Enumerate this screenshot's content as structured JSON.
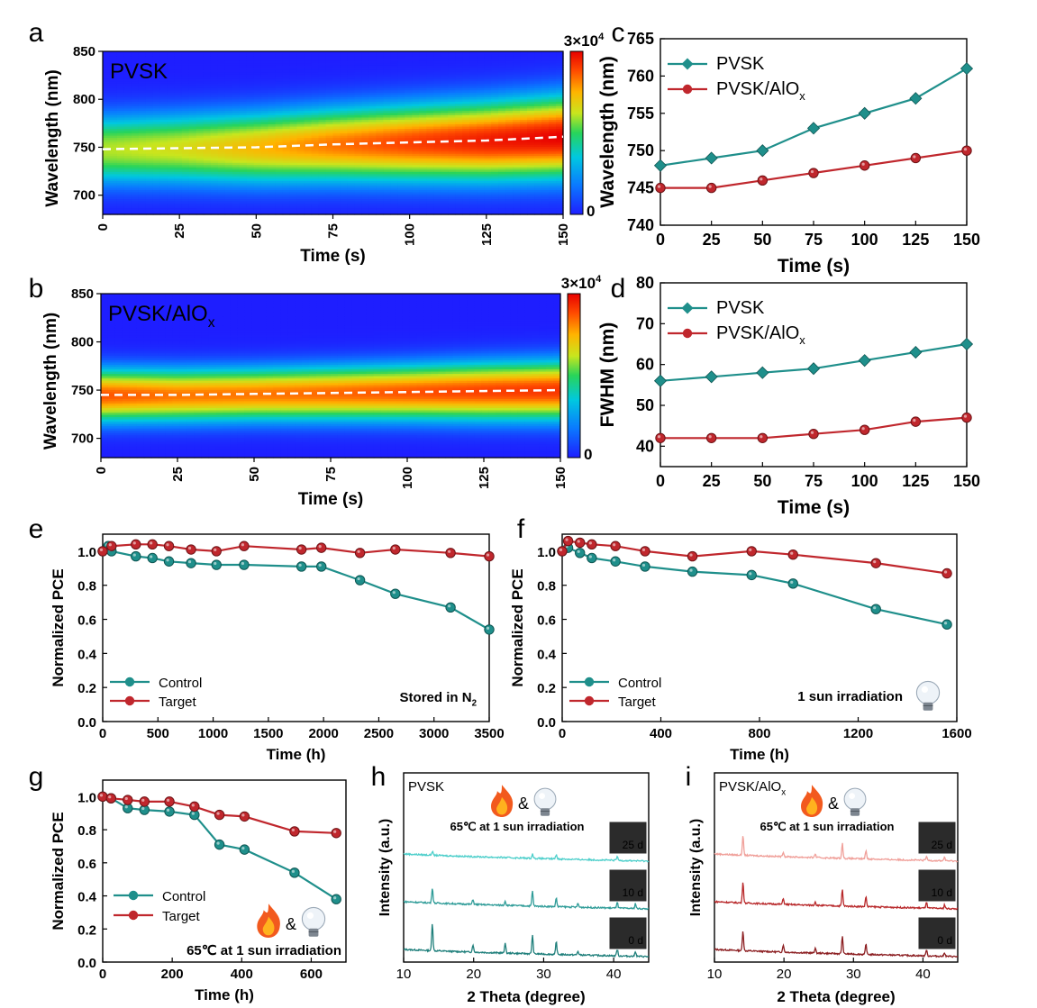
{
  "colors": {
    "pvsk": "#1f8f8b",
    "aiox": "#c0272d",
    "control": "#1f8f8b",
    "target": "#c0272d",
    "dash": "#ffffff",
    "colormap": [
      "#1e1eff",
      "#0a7aff",
      "#00c8e0",
      "#28d45a",
      "#c8e61e",
      "#ffb400",
      "#ff4c00",
      "#e80000"
    ]
  },
  "chart_data": [
    {
      "id": "a",
      "panel_label": "a",
      "type": "heatmap",
      "inset_label": "PVSK",
      "xlabel": "Time (s)",
      "ylabel": "Wavelength (nm)",
      "xlim": [
        0,
        150
      ],
      "ylim": [
        680,
        850
      ],
      "xticks": [
        "0",
        "25",
        "50",
        "75",
        "100",
        "125",
        "150"
      ],
      "yticks": [
        "700",
        "750",
        "800",
        "850"
      ],
      "colorbar": {
        "max_label": "3×10",
        "max_exp": "4",
        "min_label": "0"
      },
      "peak_trace": {
        "x": [
          0,
          25,
          50,
          75,
          100,
          125,
          150
        ],
        "y": [
          748,
          749,
          750,
          753,
          755,
          757,
          761
        ]
      },
      "fwhm_trace": [
        56,
        57,
        58,
        59,
        61,
        63,
        65
      ],
      "intensity_trend": [
        0.55,
        0.6,
        0.7,
        0.8,
        0.88,
        0.95,
        1.0
      ]
    },
    {
      "id": "b",
      "panel_label": "b",
      "type": "heatmap",
      "inset_label": "PVSK/AlO",
      "inset_sub": "x",
      "xlabel": "Time (s)",
      "ylabel": "Wavelength (nm)",
      "xlim": [
        0,
        150
      ],
      "ylim": [
        680,
        850
      ],
      "xticks": [
        "0",
        "25",
        "50",
        "75",
        "100",
        "125",
        "150"
      ],
      "yticks": [
        "700",
        "750",
        "800",
        "850"
      ],
      "colorbar": {
        "max_label": "3×10",
        "max_exp": "4",
        "min_label": "0"
      },
      "peak_trace": {
        "x": [
          0,
          25,
          50,
          75,
          100,
          125,
          150
        ],
        "y": [
          745,
          745,
          746,
          747,
          748,
          749,
          750
        ]
      },
      "fwhm_trace": [
        42,
        42,
        42,
        43,
        44,
        46,
        47
      ],
      "intensity_trend": [
        0.85,
        0.8,
        0.8,
        0.82,
        0.85,
        0.88,
        0.9
      ]
    },
    {
      "id": "c",
      "panel_label": "c",
      "type": "line",
      "xlabel": "Time (s)",
      "ylabel": "Wavelength (nm)",
      "xlim": [
        0,
        150
      ],
      "ylim": [
        740,
        765
      ],
      "xticks": [
        0,
        25,
        50,
        75,
        100,
        125,
        150
      ],
      "yticks": [
        740,
        745,
        750,
        755,
        760,
        765
      ],
      "series": [
        {
          "name": "PVSK",
          "marker": "diamond",
          "x": [
            0,
            25,
            50,
            75,
            100,
            125,
            150
          ],
          "values": [
            748,
            749,
            750,
            753,
            755,
            757,
            761
          ]
        },
        {
          "name": "PVSK/AlO",
          "sub": "x",
          "marker": "circle",
          "x": [
            0,
            25,
            50,
            75,
            100,
            125,
            150
          ],
          "values": [
            745,
            745,
            746,
            747,
            748,
            749,
            750
          ]
        }
      ]
    },
    {
      "id": "d",
      "panel_label": "d",
      "type": "line",
      "xlabel": "Time (s)",
      "ylabel": "FWHM (nm)",
      "xlim": [
        0,
        150
      ],
      "ylim": [
        35,
        80
      ],
      "xticks": [
        0,
        25,
        50,
        75,
        100,
        125,
        150
      ],
      "yticks": [
        40,
        50,
        60,
        70,
        80
      ],
      "series": [
        {
          "name": "PVSK",
          "marker": "diamond",
          "x": [
            0,
            25,
            50,
            75,
            100,
            125,
            150
          ],
          "values": [
            56,
            57,
            58,
            59,
            61,
            63,
            65
          ]
        },
        {
          "name": "PVSK/AlO",
          "sub": "x",
          "marker": "circle",
          "x": [
            0,
            25,
            50,
            75,
            100,
            125,
            150
          ],
          "values": [
            42,
            42,
            42,
            43,
            44,
            46,
            47
          ]
        }
      ]
    },
    {
      "id": "e",
      "panel_label": "e",
      "type": "line",
      "xlabel": "Time (h)",
      "ylabel": "Normalized PCE",
      "xlim": [
        0,
        3500
      ],
      "ylim": [
        0,
        1.1
      ],
      "xticks": [
        0,
        500,
        1000,
        1500,
        2000,
        2500,
        3000,
        3500
      ],
      "yticks": [
        "0.0",
        "0.2",
        "0.4",
        "0.6",
        "0.8",
        "1.0"
      ],
      "annotation": "Stored in N",
      "annotation_sub": "2",
      "series": [
        {
          "name": "Control",
          "x": [
            0,
            50,
            80,
            300,
            450,
            600,
            800,
            1030,
            1280,
            1800,
            1980,
            2330,
            2650,
            3150,
            3500
          ],
          "values": [
            1.0,
            1.03,
            1.0,
            0.97,
            0.96,
            0.94,
            0.93,
            0.92,
            0.92,
            0.91,
            0.91,
            0.83,
            0.75,
            0.67,
            0.54
          ]
        },
        {
          "name": "Target",
          "x": [
            0,
            80,
            300,
            450,
            600,
            800,
            1030,
            1280,
            1800,
            1980,
            2330,
            2650,
            3150,
            3500
          ],
          "values": [
            1.0,
            1.03,
            1.04,
            1.04,
            1.03,
            1.01,
            1.0,
            1.03,
            1.01,
            1.02,
            0.99,
            1.01,
            0.99,
            0.97
          ]
        }
      ]
    },
    {
      "id": "f",
      "panel_label": "f",
      "type": "line",
      "xlabel": "Time (h)",
      "ylabel": "Normalized PCE",
      "xlim": [
        0,
        1600
      ],
      "ylim": [
        0,
        1.1
      ],
      "xticks": [
        0,
        400,
        800,
        1200,
        1600
      ],
      "yticks": [
        "0.0",
        "0.2",
        "0.4",
        "0.6",
        "0.8",
        "1.0"
      ],
      "annotation": "1 sun irradiation",
      "annotation_icon": "bulb",
      "series": [
        {
          "name": "Control",
          "x": [
            0,
            24,
            72,
            120,
            216,
            336,
            528,
            768,
            936,
            1272,
            1560
          ],
          "values": [
            1.0,
            1.02,
            0.99,
            0.96,
            0.94,
            0.91,
            0.88,
            0.86,
            0.81,
            0.66,
            0.57
          ]
        },
        {
          "name": "Target",
          "x": [
            0,
            24,
            72,
            120,
            216,
            336,
            528,
            768,
            936,
            1272,
            1560
          ],
          "values": [
            1.0,
            1.06,
            1.05,
            1.04,
            1.03,
            1.0,
            0.97,
            1.0,
            0.98,
            0.93,
            0.87
          ]
        }
      ]
    },
    {
      "id": "g",
      "panel_label": "g",
      "type": "line",
      "xlabel": "Time (h)",
      "ylabel": "Normalized PCE",
      "xlim": [
        0,
        700
      ],
      "ylim": [
        0,
        1.1
      ],
      "xticks": [
        0,
        200,
        400,
        600
      ],
      "yticks": [
        "0.0",
        "0.2",
        "0.4",
        "0.6",
        "0.8",
        "1.0"
      ],
      "annotation": "65℃ at  1 sun irradiation",
      "annotation_icon": "fire-bulb",
      "series": [
        {
          "name": "Control",
          "x": [
            0,
            24,
            72,
            120,
            192,
            264,
            336,
            408,
            552,
            672
          ],
          "values": [
            1.0,
            0.99,
            0.93,
            0.92,
            0.91,
            0.89,
            0.71,
            0.68,
            0.54,
            0.38
          ]
        },
        {
          "name": "Target",
          "x": [
            0,
            24,
            72,
            120,
            192,
            264,
            336,
            408,
            552,
            672
          ],
          "values": [
            1.0,
            0.99,
            0.98,
            0.97,
            0.97,
            0.94,
            0.89,
            0.88,
            0.79,
            0.78
          ]
        }
      ]
    },
    {
      "id": "h",
      "panel_label": "h",
      "type": "line",
      "inset_label": "PVSK",
      "xlabel": "2 Theta (degree)",
      "ylabel": "Intensity (a.u.)",
      "xlim": [
        10,
        45
      ],
      "xticks": [
        10,
        20,
        30,
        40
      ],
      "annotation": "65℃ at  1 sun irradiation",
      "annotation_icon": "fire-bulb",
      "series": [
        {
          "name": "25 d",
          "color": "#4ecfcb",
          "peaks": [
            [
              14.1,
              0.3
            ],
            [
              28.4,
              0.35
            ],
            [
              31.8,
              0.35
            ],
            [
              40.5,
              0.3
            ]
          ],
          "offset": 2
        },
        {
          "name": "10 d",
          "color": "#2f9c98",
          "peaks": [
            [
              14.1,
              1.2
            ],
            [
              19.9,
              0.4
            ],
            [
              24.5,
              0.35
            ],
            [
              28.4,
              1.2
            ],
            [
              31.8,
              0.7
            ],
            [
              34.9,
              0.3
            ],
            [
              40.5,
              0.5
            ],
            [
              43.1,
              0.4
            ]
          ],
          "offset": 1
        },
        {
          "name": "0 d",
          "color": "#1f7f7b",
          "peaks": [
            [
              14.1,
              2.2
            ],
            [
              19.9,
              0.6
            ],
            [
              24.5,
              0.8
            ],
            [
              28.4,
              1.5
            ],
            [
              31.8,
              1.0
            ],
            [
              34.9,
              0.3
            ],
            [
              40.5,
              0.6
            ],
            [
              43.1,
              0.4
            ]
          ],
          "offset": 0
        }
      ]
    },
    {
      "id": "i",
      "panel_label": "i",
      "type": "line",
      "inset_label": "PVSK/AlO",
      "inset_sub": "x",
      "xlabel": "2 Theta (degree)",
      "ylabel": "Intensity (a.u.)",
      "xlim": [
        10,
        45
      ],
      "xticks": [
        10,
        20,
        30,
        40
      ],
      "annotation": "65℃ at  1 sun irradiation",
      "annotation_icon": "fire-bulb",
      "series": [
        {
          "name": "25 d",
          "color": "#f0a09a",
          "peaks": [
            [
              14.1,
              1.6
            ],
            [
              19.9,
              0.4
            ],
            [
              24.5,
              0.3
            ],
            [
              28.4,
              1.2
            ],
            [
              31.8,
              0.7
            ],
            [
              40.5,
              0.3
            ],
            [
              43.1,
              0.3
            ]
          ],
          "offset": 2
        },
        {
          "name": "10 d",
          "color": "#b8282a",
          "peaks": [
            [
              14.1,
              1.7
            ],
            [
              19.9,
              0.5
            ],
            [
              24.5,
              0.3
            ],
            [
              28.4,
              1.3
            ],
            [
              31.8,
              0.8
            ],
            [
              40.5,
              0.5
            ],
            [
              43.1,
              0.3
            ]
          ],
          "offset": 1
        },
        {
          "name": "0 d",
          "color": "#8c1f22",
          "peaks": [
            [
              14.1,
              1.6
            ],
            [
              19.9,
              0.6
            ],
            [
              24.5,
              0.4
            ],
            [
              28.4,
              1.4
            ],
            [
              31.8,
              0.8
            ],
            [
              40.5,
              0.5
            ],
            [
              43.1,
              0.3
            ]
          ],
          "offset": 0
        }
      ]
    }
  ]
}
